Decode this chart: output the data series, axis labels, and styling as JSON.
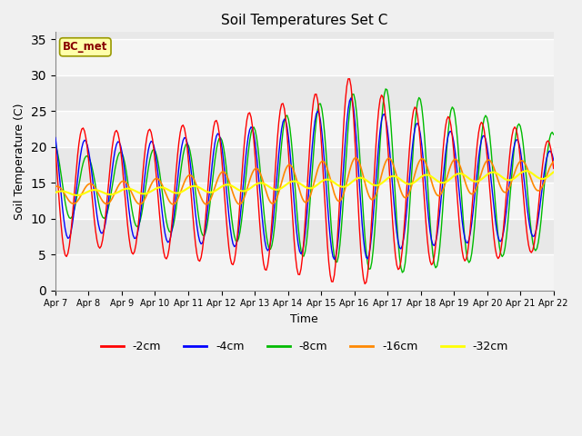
{
  "title": "Soil Temperatures Set C",
  "xlabel": "Time",
  "ylabel": "Soil Temperature (C)",
  "ylim": [
    0,
    36
  ],
  "yticks": [
    0,
    5,
    10,
    15,
    20,
    25,
    30,
    35
  ],
  "colors": {
    "-2cm": "#ff0000",
    "-4cm": "#0000ff",
    "-8cm": "#00bb00",
    "-16cm": "#ff8800",
    "-32cm": "#ffff00"
  },
  "legend_labels": [
    "-2cm",
    "-4cm",
    "-8cm",
    "-16cm",
    "-32cm"
  ],
  "watermark": "BC_met",
  "plot_bg_color": "#e8e8e8",
  "fig_bg_color": "#f0f0f0",
  "xtick_labels": [
    "Apr 7",
    "Apr 8",
    "Apr 9",
    "Apr 10",
    "Apr 11",
    "Apr 12",
    "Apr 13",
    "Apr 14",
    "Apr 15",
    "Apr 16",
    "Apr 17",
    "Apr 18",
    "Apr 19",
    "Apr 20",
    "Apr 21",
    "Apr 22"
  ]
}
